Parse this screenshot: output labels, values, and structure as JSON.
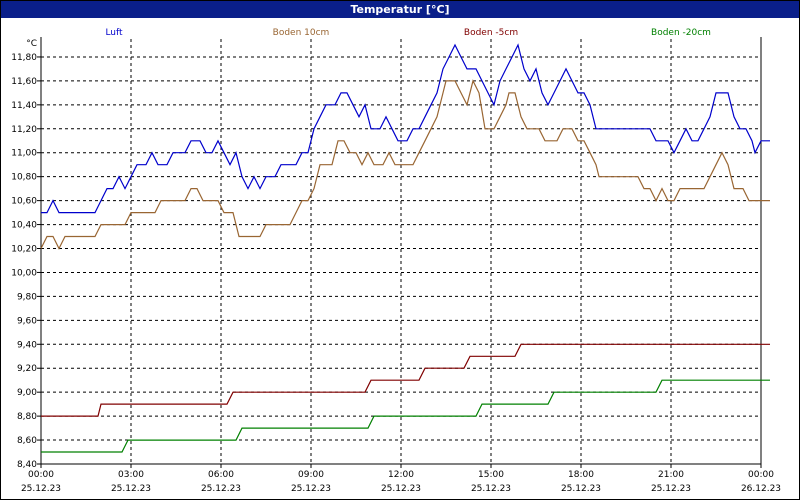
{
  "window": {
    "title": "Temperatur [°C]"
  },
  "chart_data": {
    "type": "line",
    "unit_label": "°C",
    "ylim": [
      8.4,
      11.95
    ],
    "xlim": [
      0,
      24
    ],
    "grid": true,
    "legend_position": "top",
    "y_ticks": [
      "11,80",
      "11,60",
      "11,40",
      "11,20",
      "11,00",
      "10,80",
      "10,60",
      "10,40",
      "10,20",
      "10,00",
      "9,80",
      "9,60",
      "9,40",
      "9,20",
      "9,00",
      "8,80",
      "8,60",
      "8,40"
    ],
    "x_ticks": [
      {
        "time": "00:00",
        "date": "25.12.23"
      },
      {
        "time": "03:00",
        "date": "25.12.23"
      },
      {
        "time": "06:00",
        "date": "25.12.23"
      },
      {
        "time": "09:00",
        "date": "25.12.23"
      },
      {
        "time": "12:00",
        "date": "25.12.23"
      },
      {
        "time": "15:00",
        "date": "25.12.23"
      },
      {
        "time": "18:00",
        "date": "25.12.23"
      },
      {
        "time": "21:00",
        "date": "25.12.23"
      },
      {
        "time": "00:00",
        "date": "26.12.23"
      }
    ],
    "series": [
      {
        "name": "Luft",
        "color": "#0000cc",
        "points": [
          [
            0,
            10.5
          ],
          [
            0.2,
            10.5
          ],
          [
            0.4,
            10.6
          ],
          [
            0.6,
            10.5
          ],
          [
            1,
            10.5
          ],
          [
            1.5,
            10.5
          ],
          [
            1.8,
            10.5
          ],
          [
            2,
            10.6
          ],
          [
            2.2,
            10.7
          ],
          [
            2.4,
            10.7
          ],
          [
            2.6,
            10.8
          ],
          [
            2.8,
            10.7
          ],
          [
            3,
            10.8
          ],
          [
            3.2,
            10.9
          ],
          [
            3.5,
            10.9
          ],
          [
            3.7,
            11.0
          ],
          [
            3.9,
            10.9
          ],
          [
            4.2,
            10.9
          ],
          [
            4.4,
            11.0
          ],
          [
            4.8,
            11.0
          ],
          [
            5,
            11.1
          ],
          [
            5.3,
            11.1
          ],
          [
            5.5,
            11.0
          ],
          [
            5.7,
            11.0
          ],
          [
            5.9,
            11.1
          ],
          [
            6.1,
            11.0
          ],
          [
            6.3,
            10.9
          ],
          [
            6.5,
            11.0
          ],
          [
            6.7,
            10.8
          ],
          [
            6.9,
            10.7
          ],
          [
            7.1,
            10.8
          ],
          [
            7.3,
            10.7
          ],
          [
            7.5,
            10.8
          ],
          [
            7.8,
            10.8
          ],
          [
            8,
            10.9
          ],
          [
            8.5,
            10.9
          ],
          [
            8.7,
            11.0
          ],
          [
            8.9,
            11.0
          ],
          [
            9.1,
            11.2
          ],
          [
            9.3,
            11.3
          ],
          [
            9.5,
            11.4
          ],
          [
            9.8,
            11.4
          ],
          [
            10,
            11.5
          ],
          [
            10.2,
            11.5
          ],
          [
            10.4,
            11.4
          ],
          [
            10.6,
            11.3
          ],
          [
            10.8,
            11.4
          ],
          [
            11,
            11.2
          ],
          [
            11.3,
            11.2
          ],
          [
            11.5,
            11.3
          ],
          [
            11.7,
            11.2
          ],
          [
            11.9,
            11.1
          ],
          [
            12.2,
            11.1
          ],
          [
            12.4,
            11.2
          ],
          [
            12.6,
            11.2
          ],
          [
            12.8,
            11.3
          ],
          [
            13,
            11.4
          ],
          [
            13.2,
            11.5
          ],
          [
            13.4,
            11.7
          ],
          [
            13.6,
            11.8
          ],
          [
            13.8,
            11.9
          ],
          [
            14,
            11.8
          ],
          [
            14.2,
            11.7
          ],
          [
            14.5,
            11.7
          ],
          [
            14.7,
            11.6
          ],
          [
            14.9,
            11.5
          ],
          [
            15.1,
            11.4
          ],
          [
            15.3,
            11.6
          ],
          [
            15.5,
            11.7
          ],
          [
            15.7,
            11.8
          ],
          [
            15.9,
            11.9
          ],
          [
            16.1,
            11.7
          ],
          [
            16.3,
            11.6
          ],
          [
            16.5,
            11.7
          ],
          [
            16.7,
            11.5
          ],
          [
            16.9,
            11.4
          ],
          [
            17.1,
            11.5
          ],
          [
            17.3,
            11.6
          ],
          [
            17.5,
            11.7
          ],
          [
            17.7,
            11.6
          ],
          [
            17.9,
            11.5
          ],
          [
            18.1,
            11.5
          ],
          [
            18.3,
            11.4
          ],
          [
            18.5,
            11.2
          ],
          [
            19,
            11.2
          ],
          [
            20,
            11.2
          ],
          [
            20.3,
            11.2
          ],
          [
            20.5,
            11.1
          ],
          [
            20.9,
            11.1
          ],
          [
            21.1,
            11.0
          ],
          [
            21.3,
            11.1
          ],
          [
            21.5,
            11.2
          ],
          [
            21.7,
            11.1
          ],
          [
            21.9,
            11.1
          ],
          [
            22.1,
            11.2
          ],
          [
            22.3,
            11.3
          ],
          [
            22.5,
            11.5
          ],
          [
            22.9,
            11.5
          ],
          [
            23.1,
            11.3
          ],
          [
            23.3,
            11.2
          ],
          [
            23.5,
            11.2
          ],
          [
            23.7,
            11.1
          ],
          [
            23.8,
            11.0
          ],
          [
            24,
            11.1
          ],
          [
            24.3,
            11.1
          ]
        ]
      },
      {
        "name": "Boden 10cm",
        "color": "#996633",
        "points": [
          [
            0,
            10.2
          ],
          [
            0.2,
            10.3
          ],
          [
            0.4,
            10.3
          ],
          [
            0.6,
            10.2
          ],
          [
            0.8,
            10.3
          ],
          [
            1,
            10.3
          ],
          [
            1.8,
            10.3
          ],
          [
            2,
            10.4
          ],
          [
            2.8,
            10.4
          ],
          [
            3,
            10.5
          ],
          [
            3.8,
            10.5
          ],
          [
            4,
            10.6
          ],
          [
            4.8,
            10.6
          ],
          [
            5,
            10.7
          ],
          [
            5.2,
            10.7
          ],
          [
            5.4,
            10.6
          ],
          [
            5.9,
            10.6
          ],
          [
            6.1,
            10.5
          ],
          [
            6.4,
            10.5
          ],
          [
            6.6,
            10.3
          ],
          [
            7.3,
            10.3
          ],
          [
            7.5,
            10.4
          ],
          [
            8.3,
            10.4
          ],
          [
            8.5,
            10.5
          ],
          [
            8.7,
            10.6
          ],
          [
            8.9,
            10.6
          ],
          [
            9.1,
            10.7
          ],
          [
            9.3,
            10.9
          ],
          [
            9.7,
            10.9
          ],
          [
            9.9,
            11.1
          ],
          [
            10.1,
            11.1
          ],
          [
            10.3,
            11.0
          ],
          [
            10.5,
            11.0
          ],
          [
            10.7,
            10.9
          ],
          [
            10.9,
            11.0
          ],
          [
            11.1,
            10.9
          ],
          [
            11.4,
            10.9
          ],
          [
            11.6,
            11.0
          ],
          [
            11.8,
            10.9
          ],
          [
            12.4,
            10.9
          ],
          [
            12.6,
            11.0
          ],
          [
            12.8,
            11.1
          ],
          [
            13,
            11.2
          ],
          [
            13.2,
            11.3
          ],
          [
            13.4,
            11.5
          ],
          [
            13.5,
            11.6
          ],
          [
            13.8,
            11.6
          ],
          [
            14,
            11.5
          ],
          [
            14.2,
            11.4
          ],
          [
            14.4,
            11.6
          ],
          [
            14.6,
            11.5
          ],
          [
            14.8,
            11.2
          ],
          [
            15.1,
            11.2
          ],
          [
            15.3,
            11.3
          ],
          [
            15.5,
            11.4
          ],
          [
            15.6,
            11.5
          ],
          [
            15.8,
            11.5
          ],
          [
            16,
            11.3
          ],
          [
            16.2,
            11.2
          ],
          [
            16.6,
            11.2
          ],
          [
            16.8,
            11.1
          ],
          [
            17.2,
            11.1
          ],
          [
            17.4,
            11.2
          ],
          [
            17.7,
            11.2
          ],
          [
            17.9,
            11.1
          ],
          [
            18.1,
            11.1
          ],
          [
            18.3,
            11.0
          ],
          [
            18.5,
            10.9
          ],
          [
            18.6,
            10.8
          ],
          [
            19.9,
            10.8
          ],
          [
            20.1,
            10.7
          ],
          [
            20.3,
            10.7
          ],
          [
            20.5,
            10.6
          ],
          [
            20.7,
            10.7
          ],
          [
            20.9,
            10.6
          ],
          [
            21.1,
            10.6
          ],
          [
            21.3,
            10.7
          ],
          [
            22.1,
            10.7
          ],
          [
            22.3,
            10.8
          ],
          [
            22.5,
            10.9
          ],
          [
            22.7,
            11.0
          ],
          [
            22.9,
            10.9
          ],
          [
            23.1,
            10.7
          ],
          [
            23.4,
            10.7
          ],
          [
            23.6,
            10.6
          ],
          [
            24.3,
            10.6
          ]
        ]
      },
      {
        "name": "Boden -5cm",
        "color": "#800000",
        "points": [
          [
            0,
            8.8
          ],
          [
            1.9,
            8.8
          ],
          [
            2,
            8.9
          ],
          [
            6.2,
            8.9
          ],
          [
            6.4,
            9.0
          ],
          [
            10.8,
            9.0
          ],
          [
            11,
            9.1
          ],
          [
            12.6,
            9.1
          ],
          [
            12.8,
            9.2
          ],
          [
            14.1,
            9.2
          ],
          [
            14.3,
            9.3
          ],
          [
            15.8,
            9.3
          ],
          [
            16,
            9.4
          ],
          [
            24.3,
            9.4
          ]
        ]
      },
      {
        "name": "Boden -20cm",
        "color": "#008000",
        "points": [
          [
            0,
            8.5
          ],
          [
            2.7,
            8.5
          ],
          [
            2.9,
            8.6
          ],
          [
            6.5,
            8.6
          ],
          [
            6.7,
            8.7
          ],
          [
            10.9,
            8.7
          ],
          [
            11.1,
            8.8
          ],
          [
            14.5,
            8.8
          ],
          [
            14.7,
            8.9
          ],
          [
            16.9,
            8.9
          ],
          [
            17.1,
            9.0
          ],
          [
            20.5,
            9.0
          ],
          [
            20.7,
            9.1
          ],
          [
            24.3,
            9.1
          ]
        ]
      }
    ]
  }
}
